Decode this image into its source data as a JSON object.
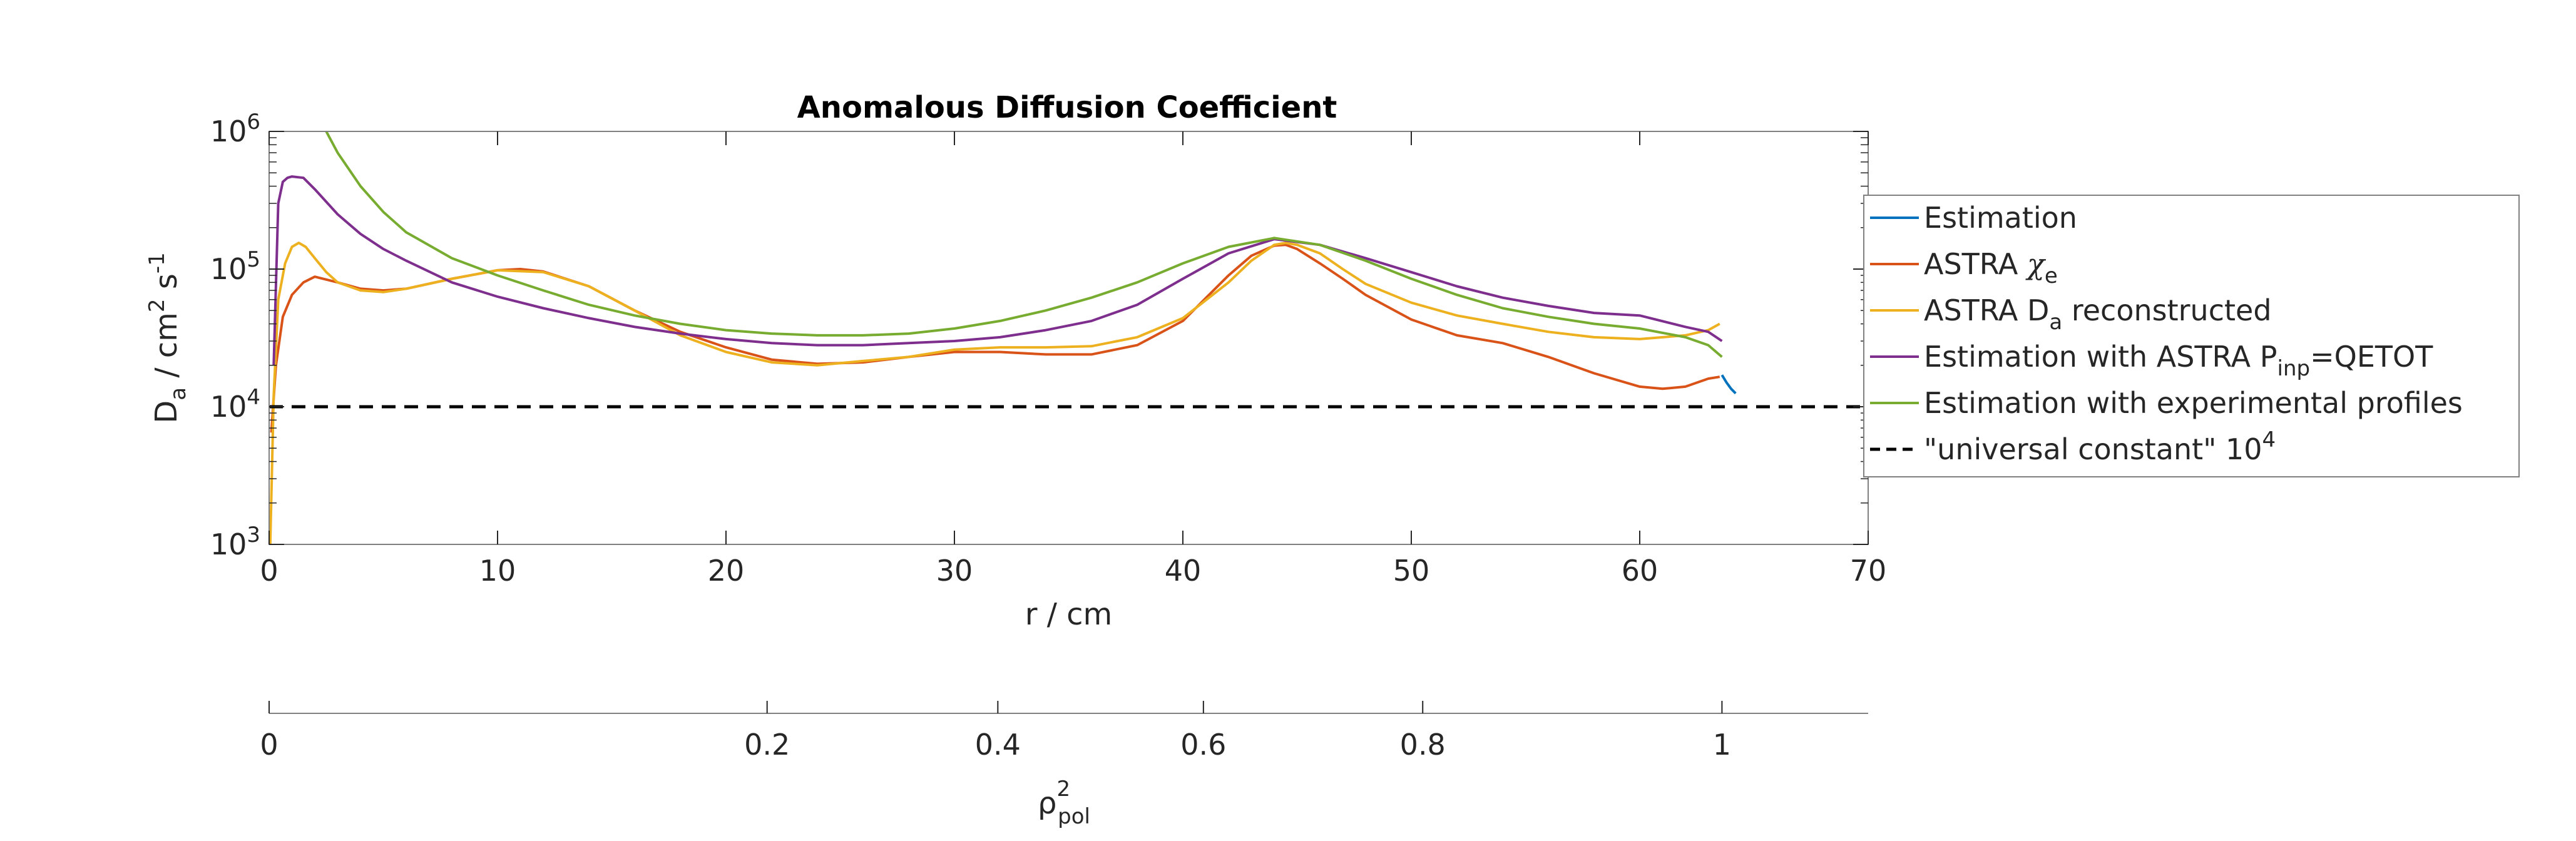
{
  "chart_data": {
    "type": "line",
    "title": "Anomalous Diffusion Coefficient",
    "xlabel": "r / cm",
    "ylabel": {
      "base": "D",
      "sub": "a",
      "unit_pre": " / cm",
      "unit_sup1": "2",
      "unit_mid": " s",
      "unit_sup2": "-1"
    },
    "xlim": [
      0,
      70
    ],
    "ylim": [
      1000,
      1000000
    ],
    "yscale": "log",
    "grid": false,
    "legend_position": "outside-right",
    "xticks": [
      0,
      10,
      20,
      30,
      40,
      50,
      60,
      70
    ],
    "yticks": [
      {
        "value": 1000,
        "base": "10",
        "exp": "3"
      },
      {
        "value": 10000,
        "base": "10",
        "exp": "4"
      },
      {
        "value": 100000,
        "base": "10",
        "exp": "5"
      },
      {
        "value": 1000000,
        "base": "10",
        "exp": "6"
      }
    ],
    "secondary_axis": {
      "label_base": "ρ",
      "label_sup": "2",
      "label_sub": "pol",
      "ticks": [
        {
          "label": "0",
          "r": 0
        },
        {
          "label": "0.2",
          "r": 21.8
        },
        {
          "label": "0.4",
          "r": 31.9
        },
        {
          "label": "0.6",
          "r": 40.9
        },
        {
          "label": "0.8",
          "r": 50.5
        },
        {
          "label": "1",
          "r": 63.6
        }
      ]
    },
    "series": [
      {
        "name": "Estimation",
        "color": "#0072BD",
        "x": [
          63.6,
          63.8,
          64.0,
          64.2
        ],
        "y": [
          17000,
          15000,
          13500,
          12500
        ]
      },
      {
        "name": "ASTRA χe",
        "legend_parts": {
          "text": "ASTRA ",
          "math": "χ",
          "sub": "e"
        },
        "color": "#D95319",
        "x": [
          0.1,
          0.3,
          0.6,
          1.0,
          1.5,
          2.0,
          3.0,
          4.0,
          5.0,
          6.0,
          8.0,
          10.0,
          11.0,
          12.0,
          14.0,
          16.0,
          18.0,
          20.0,
          22.0,
          24.0,
          26.0,
          28.0,
          30.0,
          32.0,
          34.0,
          36.0,
          38.0,
          40.0,
          42.0,
          43.0,
          44.0,
          44.5,
          45.0,
          46.0,
          47.0,
          48.0,
          50.0,
          52.0,
          54.0,
          56.0,
          58.0,
          60.0,
          61.0,
          62.0,
          63.0,
          63.5
        ],
        "y": [
          6500,
          20000,
          45000,
          65000,
          80000,
          88000,
          80000,
          72000,
          70000,
          72000,
          85000,
          98000,
          100000,
          96000,
          75000,
          50000,
          35000,
          27000,
          22000,
          20500,
          21000,
          23000,
          25000,
          25000,
          24000,
          24000,
          28000,
          42000,
          90000,
          125000,
          148000,
          150000,
          140000,
          110000,
          85000,
          65000,
          43000,
          33000,
          29000,
          23000,
          17500,
          14000,
          13500,
          14000,
          16000,
          16500
        ]
      },
      {
        "name": "ASTRA Da reconstructed",
        "legend_parts": {
          "text": "ASTRA D",
          "sub": "a",
          "text2": " reconstructed"
        },
        "color": "#EDB120",
        "x": [
          0.05,
          0.2,
          0.4,
          0.7,
          1.0,
          1.3,
          1.6,
          2.0,
          2.5,
          3.0,
          4.0,
          5.0,
          6.0,
          8.0,
          10.0,
          12.0,
          14.0,
          16.0,
          18.0,
          20.0,
          22.0,
          24.0,
          26.0,
          28.0,
          30.0,
          32.0,
          34.0,
          36.0,
          38.0,
          40.0,
          42.0,
          43.0,
          44.0,
          44.5,
          45.0,
          46.0,
          47.0,
          48.0,
          50.0,
          52.0,
          54.0,
          56.0,
          58.0,
          60.0,
          62.0,
          63.0,
          63.5
        ],
        "y": [
          1000,
          12000,
          60000,
          110000,
          145000,
          155000,
          145000,
          120000,
          95000,
          80000,
          70000,
          68000,
          72000,
          85000,
          98000,
          95000,
          75000,
          50000,
          33000,
          25000,
          21000,
          20000,
          21500,
          23000,
          26000,
          27000,
          27000,
          27500,
          32000,
          44000,
          80000,
          115000,
          150000,
          155000,
          150000,
          130000,
          100000,
          78000,
          57000,
          46000,
          40000,
          35000,
          32000,
          31000,
          33000,
          36000,
          40000
        ]
      },
      {
        "name": "Estimation with ASTRA Pinp=QETOT",
        "legend_parts": {
          "text": "Estimation with ASTRA P",
          "sub": "inp",
          "text2": "=QETOT"
        },
        "color": "#7E2F8E",
        "x": [
          0.2,
          0.4,
          0.6,
          0.8,
          1.0,
          1.5,
          2.0,
          3.0,
          4.0,
          5.0,
          6.0,
          8.0,
          10.0,
          12.0,
          14.0,
          16.0,
          18.0,
          20.0,
          22.0,
          24.0,
          26.0,
          28.0,
          30.0,
          32.0,
          34.0,
          36.0,
          38.0,
          40.0,
          42.0,
          44.0,
          46.0,
          48.0,
          50.0,
          52.0,
          54.0,
          56.0,
          58.0,
          60.0,
          62.0,
          63.0,
          63.6
        ],
        "y": [
          20000,
          300000,
          430000,
          460000,
          470000,
          460000,
          380000,
          250000,
          180000,
          140000,
          115000,
          80000,
          63000,
          52000,
          44000,
          38000,
          34000,
          31000,
          29000,
          28000,
          28000,
          29000,
          30000,
          32000,
          36000,
          42000,
          55000,
          85000,
          130000,
          165000,
          150000,
          120000,
          95000,
          75000,
          62000,
          54000,
          48000,
          46000,
          38000,
          35000,
          30000
        ]
      },
      {
        "name": "Estimation with experimental profiles",
        "color": "#77AC30",
        "x": [
          2.5,
          3.0,
          4.0,
          5.0,
          6.0,
          8.0,
          10.0,
          12.0,
          14.0,
          16.0,
          18.0,
          20.0,
          22.0,
          24.0,
          26.0,
          28.0,
          30.0,
          32.0,
          34.0,
          36.0,
          38.0,
          40.0,
          42.0,
          44.0,
          46.0,
          48.0,
          50.0,
          52.0,
          54.0,
          56.0,
          58.0,
          60.0,
          62.0,
          63.0,
          63.6
        ],
        "y": [
          1000000,
          700000,
          400000,
          260000,
          185000,
          120000,
          90000,
          70000,
          55000,
          46000,
          40000,
          36000,
          34000,
          33000,
          33000,
          34000,
          37000,
          42000,
          50000,
          62000,
          80000,
          110000,
          145000,
          168000,
          150000,
          115000,
          85000,
          65000,
          52000,
          45000,
          40000,
          37000,
          32000,
          28000,
          23000
        ]
      },
      {
        "name": "\"universal constant\" 10^4",
        "legend_parts": {
          "text": "\"universal constant\" 10",
          "sup": "4"
        },
        "color": "#000000",
        "dashed": true,
        "x": [
          0,
          70
        ],
        "y": [
          10000,
          10000
        ]
      }
    ]
  }
}
